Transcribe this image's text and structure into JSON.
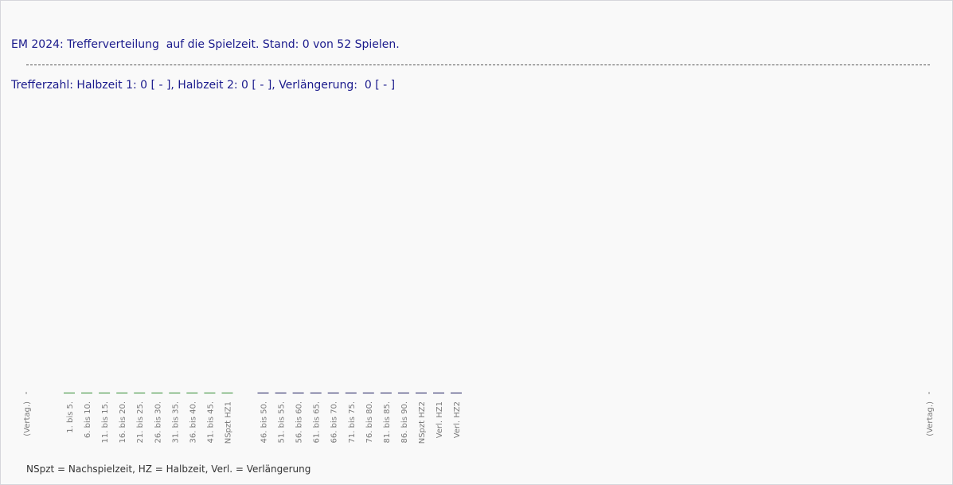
{
  "header": {
    "line1": "EM 2024: Trefferverteilung  auf die Spielzeit. Stand: 0 von 52 Spielen.",
    "line2": "Trefferzahl: Halbzeit 1: 0 [ - ], Halbzeit 2: 0 [ - ], Verlängerung:  0 [ - ]"
  },
  "footnote": "NSpzt = Nachspielzeit, HZ = Halbzeit, Verl. = Verlängerung",
  "chart_data": {
    "type": "bar",
    "title": "EM 2024: Trefferverteilung  auf die Spielzeit. Stand: 0 von 52 Spielen.",
    "xlabel": "",
    "ylabel": "",
    "grid": false,
    "categories": [
      "1. bis 5.",
      "6. bis 10.",
      "11. bis 15.",
      "16. bis 20.",
      "21. bis 25.",
      "26. bis 30.",
      "31. bis 35.",
      "36. bis 40.",
      "41. bis 45.",
      "NSpzt HZ1",
      "46. bis 50.",
      "51. bis 55.",
      "56. bis 60.",
      "61. bis 65.",
      "66. bis 70.",
      "71. bis 75.",
      "76. bis 80.",
      "81. bis 85.",
      "86. bis 90.",
      "NSpzt HZ2",
      "Verl. HZ1",
      "Verl. HZ2"
    ],
    "edge_labels": [
      "(Vertag.)",
      "(Vertag.)"
    ],
    "values": [
      0,
      0,
      0,
      0,
      0,
      0,
      0,
      0,
      0,
      0,
      0,
      0,
      0,
      0,
      0,
      0,
      0,
      0,
      0,
      0,
      0,
      0
    ],
    "colors": {
      "half1": "#2e8b2e",
      "half2": "#1a1a5c",
      "tick_text": "#7a7a7a"
    }
  }
}
